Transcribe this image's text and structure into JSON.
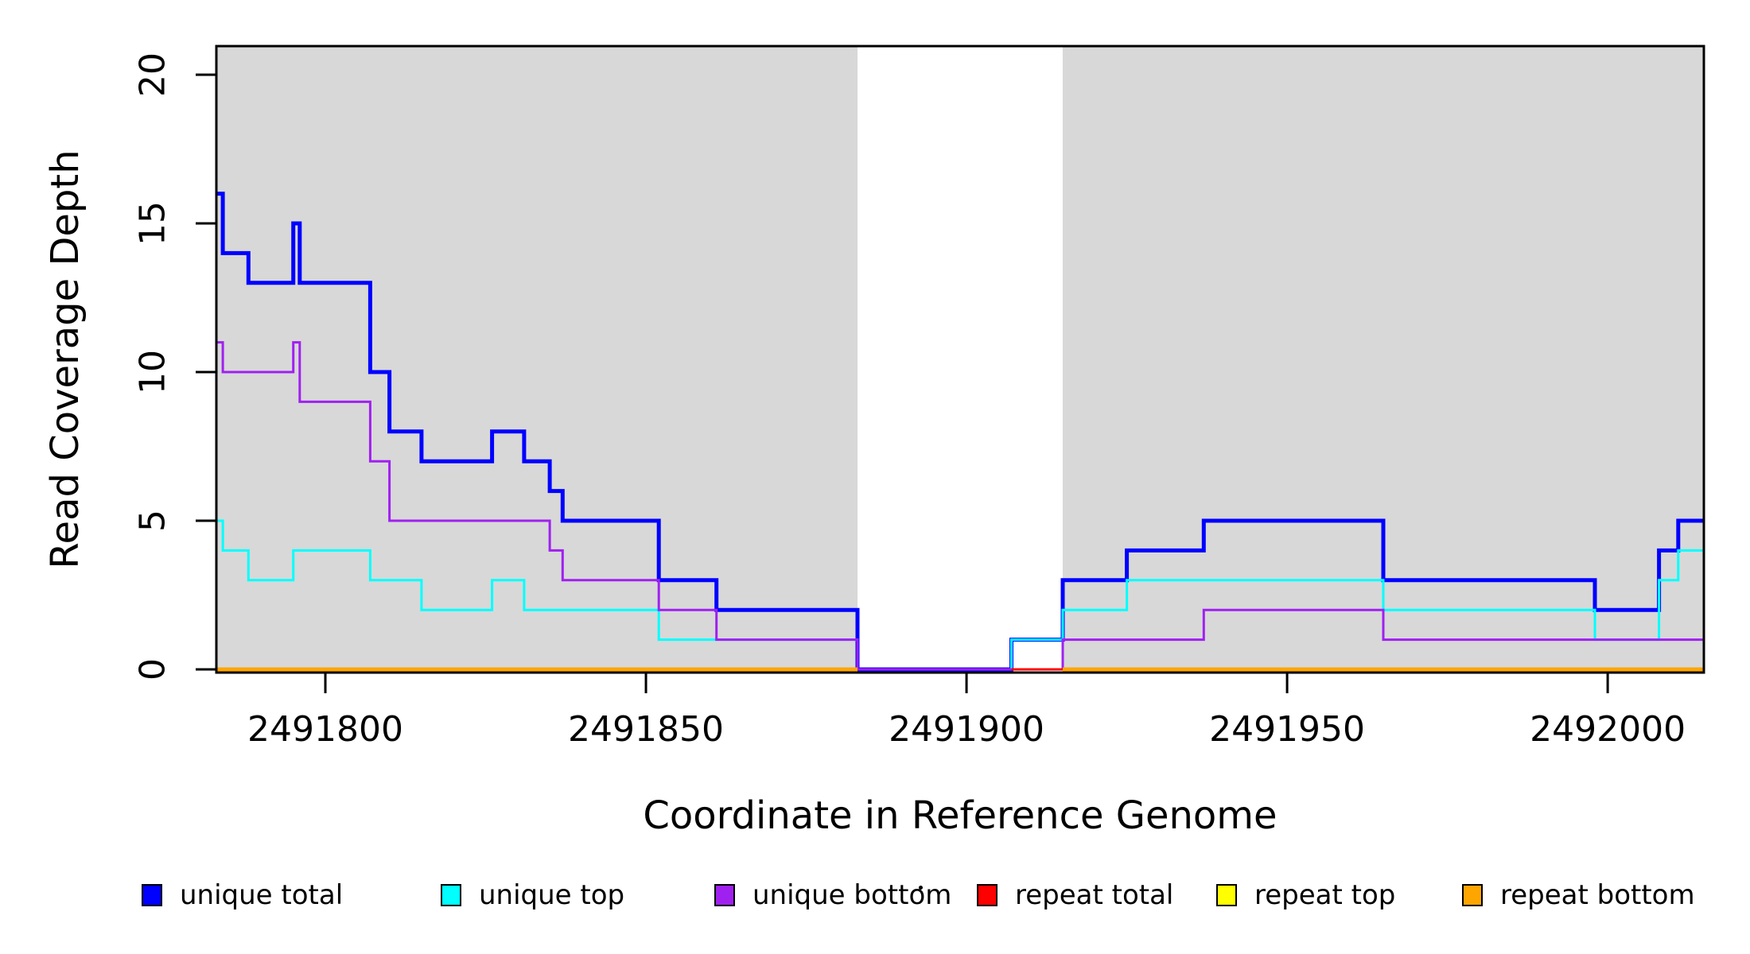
{
  "y_axis": {
    "title": "Read Coverage Depth",
    "ticks": [
      "0",
      "5",
      "10",
      "15",
      "20"
    ],
    "tick_values": [
      0,
      5,
      10,
      15,
      20
    ]
  },
  "x_axis": {
    "title": "Coordinate in Reference Genome",
    "ticks": [
      "2491800",
      "2491850",
      "2491900",
      "2491950",
      "2492000"
    ],
    "tick_values": [
      2491800,
      2491850,
      2491900,
      2491950,
      2492000
    ]
  },
  "legend": {
    "items": [
      {
        "label": "unique total",
        "color": "#0000FF"
      },
      {
        "label": "unique top",
        "color": "#00FFFF"
      },
      {
        "label": "unique bottom",
        "color": "#A020F0"
      },
      {
        "label": "repeat total",
        "color": "#FF0000"
      },
      {
        "label": "repeat top",
        "color": "#FFFF00"
      },
      {
        "label": "repeat bottom",
        "color": "#FFA500"
      }
    ],
    "stray_dot": true
  },
  "colors": {
    "shaded_region": "#D8D8D8",
    "axis": "#000000",
    "background": "#FFFFFF"
  },
  "chart_data": {
    "type": "line",
    "step": true,
    "title": "",
    "xlabel": "Coordinate in Reference Genome",
    "ylabel": "Read Coverage Depth",
    "xlim": [
      2491783,
      2492015
    ],
    "ylim": [
      0,
      21
    ],
    "grid": false,
    "legend_position": "bottom",
    "shaded_regions": [
      [
        2491783,
        2491883
      ],
      [
        2491915,
        2492015
      ]
    ],
    "white_gap": [
      2491883,
      2491915
    ],
    "series": [
      {
        "name": "unique total",
        "color": "#0000FF",
        "width": 5,
        "segments": [
          [
            2491783,
            2491784,
            16
          ],
          [
            2491784,
            2491788,
            14
          ],
          [
            2491788,
            2491795,
            13
          ],
          [
            2491795,
            2491796,
            15
          ],
          [
            2491796,
            2491807,
            13
          ],
          [
            2491807,
            2491810,
            10
          ],
          [
            2491810,
            2491815,
            8
          ],
          [
            2491815,
            2491826,
            7
          ],
          [
            2491826,
            2491831,
            8
          ],
          [
            2491831,
            2491835,
            7
          ],
          [
            2491835,
            2491837,
            6
          ],
          [
            2491837,
            2491852,
            5
          ],
          [
            2491852,
            2491861,
            3
          ],
          [
            2491861,
            2491883,
            2
          ],
          [
            2491883,
            2491907,
            0
          ],
          [
            2491907,
            2491915,
            1
          ],
          [
            2491915,
            2491925,
            3
          ],
          [
            2491925,
            2491937,
            4
          ],
          [
            2491937,
            2491965,
            5
          ],
          [
            2491965,
            2491998,
            3
          ],
          [
            2491998,
            2492008,
            2
          ],
          [
            2492008,
            2492011,
            4
          ],
          [
            2492011,
            2492015,
            5
          ]
        ]
      },
      {
        "name": "unique top",
        "color": "#00FFFF",
        "width": 3,
        "segments": [
          [
            2491783,
            2491784,
            5
          ],
          [
            2491784,
            2491788,
            4
          ],
          [
            2491788,
            2491795,
            3
          ],
          [
            2491795,
            2491807,
            4
          ],
          [
            2491807,
            2491815,
            3
          ],
          [
            2491815,
            2491826,
            2
          ],
          [
            2491826,
            2491831,
            3
          ],
          [
            2491831,
            2491852,
            2
          ],
          [
            2491852,
            2491883,
            1
          ],
          [
            2491883,
            2491907,
            0
          ],
          [
            2491907,
            2491915,
            1
          ],
          [
            2491915,
            2491925,
            2
          ],
          [
            2491925,
            2491965,
            3
          ],
          [
            2491965,
            2491998,
            2
          ],
          [
            2491998,
            2492008,
            1
          ],
          [
            2492008,
            2492011,
            3
          ],
          [
            2492011,
            2492015,
            4
          ]
        ]
      },
      {
        "name": "unique bottom",
        "color": "#A020F0",
        "width": 3,
        "segments": [
          [
            2491783,
            2491784,
            11
          ],
          [
            2491784,
            2491795,
            10
          ],
          [
            2491795,
            2491796,
            11
          ],
          [
            2491796,
            2491807,
            9
          ],
          [
            2491807,
            2491810,
            7
          ],
          [
            2491810,
            2491835,
            5
          ],
          [
            2491835,
            2491837,
            4
          ],
          [
            2491837,
            2491852,
            3
          ],
          [
            2491852,
            2491861,
            2
          ],
          [
            2491861,
            2491883,
            1
          ],
          [
            2491883,
            2491915,
            0
          ],
          [
            2491915,
            2491937,
            1
          ],
          [
            2491937,
            2491965,
            2
          ],
          [
            2491965,
            2492015,
            1
          ]
        ]
      },
      {
        "name": "repeat total",
        "color": "#FF0000",
        "width": 3,
        "segments": [
          [
            2491783,
            2491883,
            0
          ],
          [
            2491907,
            2492015,
            0
          ]
        ]
      },
      {
        "name": "repeat top",
        "color": "#FFFF00",
        "width": 3,
        "segments": [
          [
            2491783,
            2491883,
            0
          ],
          [
            2491915,
            2492015,
            0
          ]
        ]
      },
      {
        "name": "repeat bottom",
        "color": "#FFA500",
        "width": 5,
        "segments": [
          [
            2491783,
            2491883,
            0
          ],
          [
            2491915,
            2492015,
            0
          ]
        ]
      }
    ]
  }
}
